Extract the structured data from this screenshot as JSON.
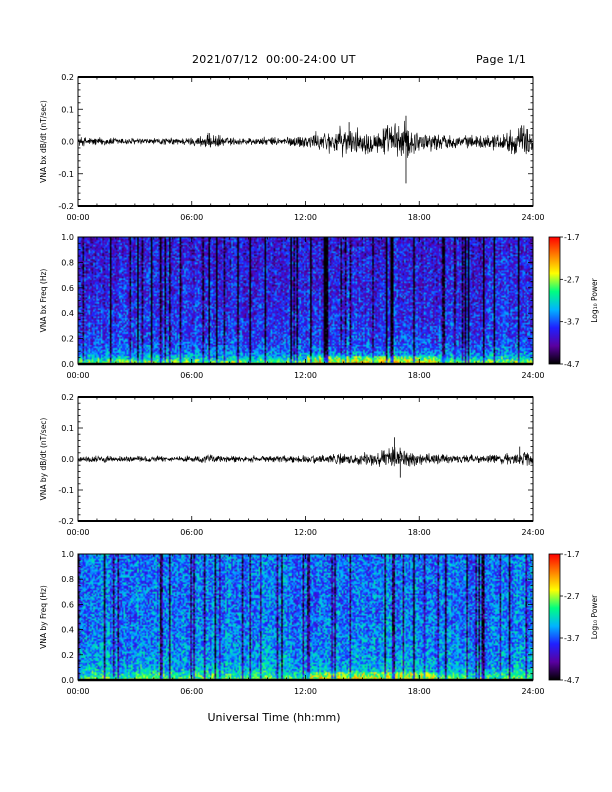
{
  "header": {
    "title": "2021/07/12  00:00-24:00 UT",
    "page": "Page 1/1"
  },
  "x_axis_title": "Universal Time (hh:mm)",
  "colors": {
    "waveform": "#000000",
    "colormap": [
      "#000000",
      "#5a00a0",
      "#2020ff",
      "#00b4ff",
      "#00ff80",
      "#ffff00",
      "#ff8000",
      "#ff0000"
    ]
  },
  "chart_data": [
    {
      "type": "line",
      "ylabel": "VNA bx dB/dt (nT/sec)",
      "x_ticks": [
        "00:00",
        "06:00",
        "12:00",
        "18:00",
        "24:00"
      ],
      "x_range_hours": [
        0,
        24
      ],
      "ylim": [
        -0.2,
        0.2
      ],
      "y_ticks": [
        "0.2",
        "0.1",
        "0.0",
        "-0.1",
        "-0.2"
      ],
      "y_tick_values": [
        0.2,
        0.1,
        0.0,
        -0.1,
        -0.2
      ],
      "envelope": {
        "x_hours": [
          0,
          2,
          4,
          6,
          7,
          8,
          10,
          11,
          12,
          13,
          14,
          15,
          16,
          16.5,
          17,
          17.3,
          18,
          20,
          21,
          22,
          23,
          23.5,
          24
        ],
        "amplitude": [
          0.012,
          0.01,
          0.008,
          0.01,
          0.02,
          0.01,
          0.01,
          0.012,
          0.018,
          0.025,
          0.035,
          0.03,
          0.03,
          0.045,
          0.05,
          0.045,
          0.025,
          0.015,
          0.015,
          0.02,
          0.03,
          0.04,
          0.03
        ]
      },
      "spikes": [
        {
          "x": 17.3,
          "y": 0.08
        },
        {
          "x": 17.3,
          "y": -0.13
        },
        {
          "x": 14.3,
          "y": 0.06
        },
        {
          "x": 23.4,
          "y": 0.05
        },
        {
          "x": 16.1,
          "y": 0.04
        }
      ]
    },
    {
      "type": "heatmap",
      "ylabel": "VNA bx Freq (Hz)",
      "x_ticks": [
        "00:00",
        "06:00",
        "12:00",
        "18:00",
        "24:00"
      ],
      "ylim": [
        0.0,
        1.0
      ],
      "y_ticks": [
        "1.0",
        "0.8",
        "0.6",
        "0.4",
        "0.2",
        "0.0"
      ],
      "y_tick_values": [
        1.0,
        0.8,
        0.6,
        0.4,
        0.2,
        0.0
      ],
      "colorbar": {
        "label": "Log₁₀ Power",
        "ticks": [
          "-1.7",
          "-2.7",
          "-3.7",
          "-4.7"
        ],
        "tick_values": [
          -1.7,
          -2.7,
          -3.7,
          -4.7
        ],
        "range": [
          -4.7,
          -1.7
        ]
      },
      "power_profile": {
        "freq": [
          0.0,
          0.02,
          0.05,
          0.1,
          0.2,
          0.5,
          1.0
        ],
        "log_power": [
          -2.7,
          -2.9,
          -3.3,
          -3.6,
          -3.8,
          -3.9,
          -4.0
        ]
      }
    },
    {
      "type": "line",
      "ylabel": "VNA by dB/dt (nT/sec)",
      "x_ticks": [
        "00:00",
        "06:00",
        "12:00",
        "18:00",
        "24:00"
      ],
      "x_range_hours": [
        0,
        24
      ],
      "ylim": [
        -0.2,
        0.2
      ],
      "y_ticks": [
        "0.2",
        "0.1",
        "0.0",
        "-0.1",
        "-0.2"
      ],
      "y_tick_values": [
        0.2,
        0.1,
        0.0,
        -0.1,
        -0.2
      ],
      "envelope": {
        "x_hours": [
          0,
          2,
          4,
          6,
          7,
          8,
          10,
          12,
          13,
          14,
          15,
          16,
          16.5,
          17,
          17.5,
          18,
          20,
          22,
          23,
          23.5,
          24
        ],
        "amplitude": [
          0.008,
          0.008,
          0.007,
          0.008,
          0.012,
          0.008,
          0.008,
          0.01,
          0.012,
          0.015,
          0.018,
          0.02,
          0.03,
          0.03,
          0.02,
          0.015,
          0.01,
          0.012,
          0.015,
          0.02,
          0.015
        ]
      },
      "spikes": [
        {
          "x": 16.7,
          "y": 0.07
        },
        {
          "x": 17.0,
          "y": -0.06
        },
        {
          "x": 23.3,
          "y": 0.04
        }
      ]
    },
    {
      "type": "heatmap",
      "ylabel": "VNA by Freq (Hz)",
      "x_ticks": [
        "00:00",
        "06:00",
        "12:00",
        "18:00",
        "24:00"
      ],
      "ylim": [
        0.0,
        1.0
      ],
      "y_ticks": [
        "1.0",
        "0.8",
        "0.6",
        "0.4",
        "0.2",
        "0.0"
      ],
      "y_tick_values": [
        1.0,
        0.8,
        0.6,
        0.4,
        0.2,
        0.0
      ],
      "colorbar": {
        "label": "Log₁₀ Power",
        "ticks": [
          "-1.7",
          "-2.7",
          "-3.7",
          "-4.7"
        ],
        "tick_values": [
          -1.7,
          -2.7,
          -3.7,
          -4.7
        ],
        "range": [
          -4.7,
          -1.7
        ]
      },
      "power_profile": {
        "freq": [
          0.0,
          0.02,
          0.05,
          0.1,
          0.2,
          0.5,
          1.0
        ],
        "log_power": [
          -2.8,
          -3.0,
          -3.2,
          -3.4,
          -3.5,
          -3.6,
          -3.6
        ]
      }
    }
  ]
}
